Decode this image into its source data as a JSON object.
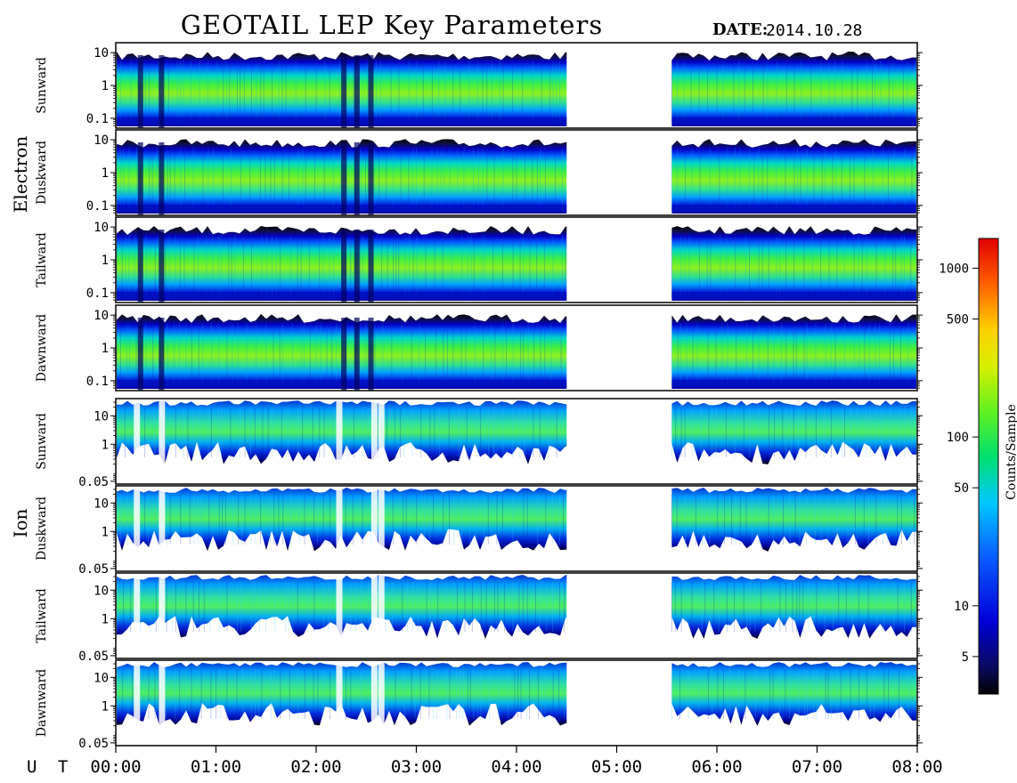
{
  "header": {
    "title": "GEOTAIL LEP Key Parameters",
    "date_label": "DATE:",
    "date_value": "2014.10.28"
  },
  "groups": [
    {
      "name": "Electron",
      "panels": [
        0,
        1,
        2,
        3
      ]
    },
    {
      "name": "Ion",
      "panels": [
        4,
        5,
        6,
        7
      ]
    }
  ],
  "xaxis": {
    "label": "U T",
    "ticks": [
      "00:00",
      "01:00",
      "02:00",
      "03:00",
      "04:00",
      "05:00",
      "06:00",
      "07:00",
      "08:00"
    ]
  },
  "colorbar": {
    "label": "Counts/Sample",
    "scale": "log",
    "range": [
      3,
      1500
    ],
    "ticks": [
      {
        "value": 5,
        "label": "5"
      },
      {
        "value": 10,
        "label": "10"
      },
      {
        "value": 50,
        "label": "50"
      },
      {
        "value": 100,
        "label": "100"
      },
      {
        "value": 500,
        "label": "500"
      },
      {
        "value": 1000,
        "label": "1000"
      }
    ],
    "colormap": "jet-like (black, dark blue, blue, cyan, green, yellow, orange, red)"
  },
  "chart_data": {
    "type": "heatmap",
    "title": "GEOTAIL LEP Key Parameters",
    "x_unit": "UT hours",
    "xlim": [
      0,
      8
    ],
    "data_gap": [
      4.5,
      5.55
    ],
    "grid": false,
    "panels": [
      {
        "species": "Electron",
        "direction": "Sunward",
        "ylabel": "Sunward",
        "scale": "log",
        "ylim": [
          0.05,
          20
        ],
        "yticks": [
          "10",
          "1",
          "0.1"
        ]
      },
      {
        "species": "Electron",
        "direction": "Duskward",
        "ylabel": "Duskward",
        "scale": "log",
        "ylim": [
          0.05,
          20
        ],
        "yticks": [
          "10",
          "1",
          "0.1"
        ]
      },
      {
        "species": "Electron",
        "direction": "Tailward",
        "ylabel": "Tailward",
        "scale": "log",
        "ylim": [
          0.05,
          20
        ],
        "yticks": [
          "10",
          "1",
          "0.1"
        ]
      },
      {
        "species": "Electron",
        "direction": "Dawnward",
        "ylabel": "Dawnward",
        "scale": "log",
        "ylim": [
          0.05,
          20
        ],
        "yticks": [
          "10",
          "1",
          "0.1"
        ]
      },
      {
        "species": "Ion",
        "direction": "Sunward",
        "ylabel": "Sunward",
        "scale": "log",
        "ylim": [
          0.04,
          40
        ],
        "yticks": [
          "10",
          "1",
          "0.05"
        ]
      },
      {
        "species": "Ion",
        "direction": "Duskward",
        "ylabel": "Duskward",
        "scale": "log",
        "ylim": [
          0.04,
          40
        ],
        "yticks": [
          "10",
          "1",
          "0.05"
        ]
      },
      {
        "species": "Ion",
        "direction": "Tailward",
        "ylabel": "Tailward",
        "scale": "log",
        "ylim": [
          0.04,
          40
        ],
        "yticks": [
          "10",
          "1",
          "0.05"
        ]
      },
      {
        "species": "Ion",
        "direction": "Dawnward",
        "ylabel": "Dawnward",
        "scale": "log",
        "ylim": [
          0.04,
          40
        ],
        "yticks": [
          "10",
          "1",
          "0.05"
        ]
      }
    ]
  }
}
